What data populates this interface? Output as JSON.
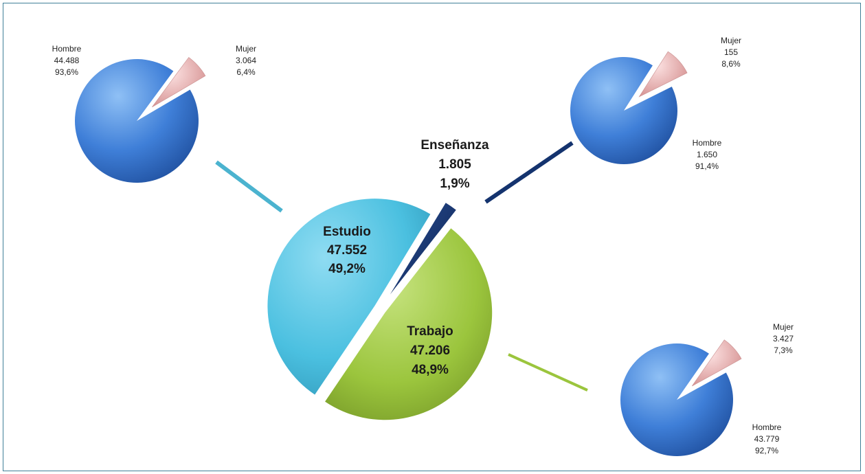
{
  "chart_data": [
    {
      "type": "pie",
      "categories": [
        "Estudio",
        "Enseñanza",
        "Trabajo"
      ],
      "values": [
        47552,
        1805,
        47206
      ],
      "value_labels": [
        "47.552",
        "1.805",
        "47.206"
      ],
      "percent_labels": [
        "49,2%",
        "1,9%",
        "48,9%"
      ],
      "colors": [
        "#4bc0e0",
        "#14336e",
        "#9bc53d"
      ]
    },
    {
      "type": "pie",
      "categories": [
        "Hombre",
        "Mujer"
      ],
      "values": [
        44488,
        3064
      ],
      "value_labels": [
        "44.488",
        "3.064"
      ],
      "percent_labels": [
        "93,6%",
        "6,4%"
      ],
      "colors": [
        "#3f7fd8",
        "#f2b8b8"
      ]
    },
    {
      "type": "pie",
      "categories": [
        "Hombre",
        "Mujer"
      ],
      "values": [
        1650,
        155
      ],
      "value_labels": [
        "1.650",
        "155"
      ],
      "percent_labels": [
        "91,4%",
        "8,6%"
      ],
      "colors": [
        "#3f7fd8",
        "#f2b8b8"
      ]
    },
    {
      "type": "pie",
      "categories": [
        "Hombre",
        "Mujer"
      ],
      "values": [
        43779,
        3427
      ],
      "value_labels": [
        "43.779",
        "3.427"
      ],
      "percent_labels": [
        "92,7%",
        "7,3%"
      ],
      "colors": [
        "#3f7fd8",
        "#f2b8b8"
      ]
    }
  ],
  "connector_colors": [
    "#4bb3cf",
    "#14336e",
    "#9bc53d"
  ]
}
